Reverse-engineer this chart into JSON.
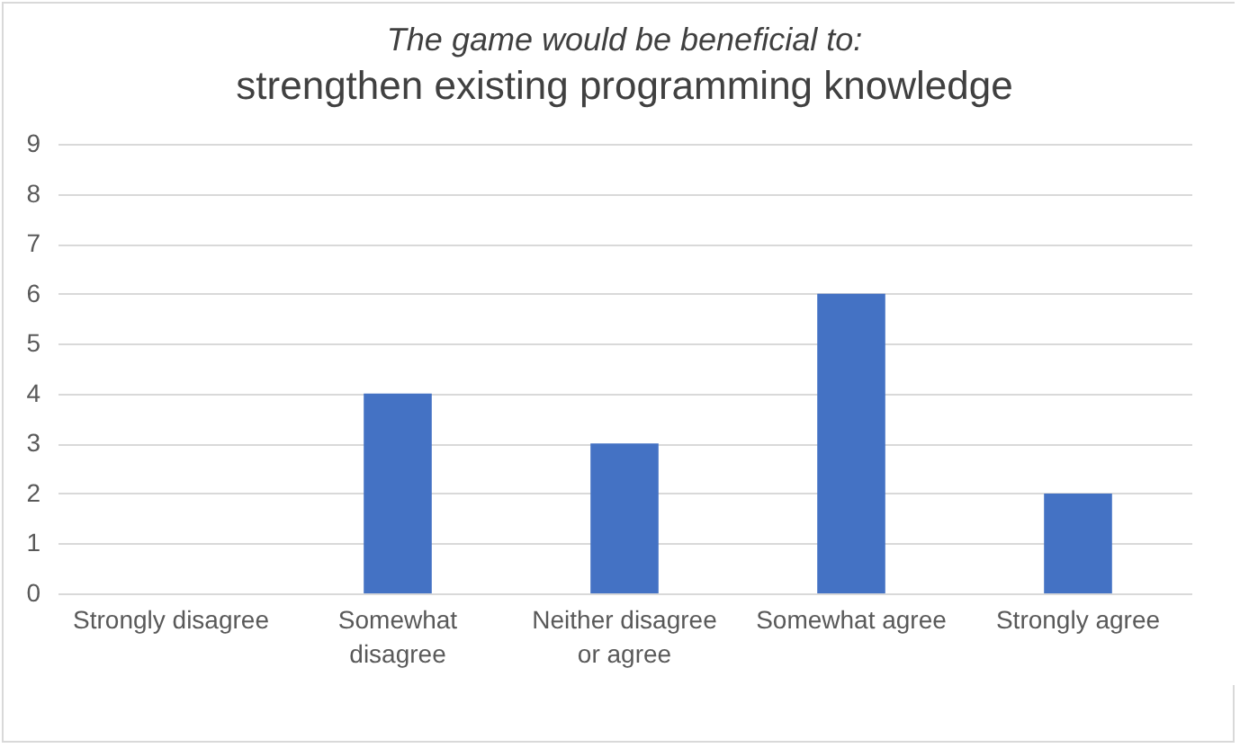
{
  "chart_data": {
    "type": "bar",
    "title": "The game would be beneficial to:",
    "subtitle": "strengthen existing programming knowledge",
    "categories": [
      "Strongly disagree",
      "Somewhat disagree",
      "Neither disagree or agree",
      "Somewhat agree",
      "Strongly agree"
    ],
    "values": [
      0,
      4,
      3,
      6,
      2
    ],
    "color": "#4472c4",
    "ylim": [
      0,
      9
    ],
    "yticks": [
      0,
      1,
      2,
      3,
      4,
      5,
      6,
      7,
      8,
      9
    ],
    "grid": "y"
  }
}
